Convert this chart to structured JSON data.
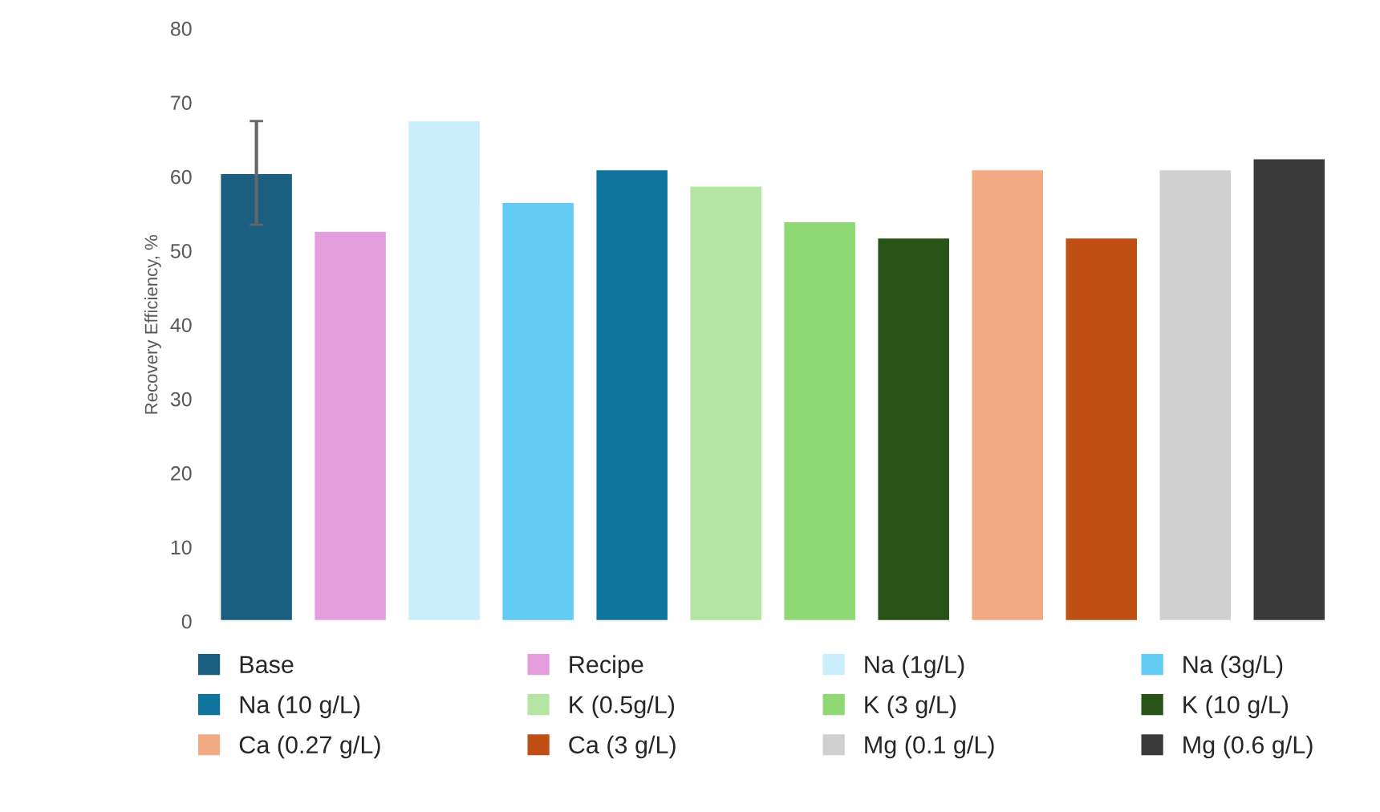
{
  "chart_data": {
    "type": "bar",
    "ylabel": "Recovery Efficiency, %",
    "stacked": true,
    "categories": [
      null,
      null,
      null,
      null,
      null,
      null,
      null,
      null,
      null,
      null,
      null,
      null
    ],
    "series": [
      {
        "name": "Base",
        "color": "#1a5e80",
        "values": [
          60.5,
          null,
          null,
          null,
          null,
          null,
          null,
          null,
          null,
          null,
          null,
          null
        ],
        "errors": [
          7,
          null,
          null,
          null,
          null,
          null,
          null,
          null,
          null,
          null,
          null,
          null
        ]
      },
      {
        "name": "Recipe",
        "color": "#e49edd",
        "values": [
          null,
          52.7,
          null,
          null,
          null,
          null,
          null,
          null,
          null,
          null,
          null,
          null
        ]
      },
      {
        "name": "Na (1g/L)",
        "color": "#caeefb",
        "values": [
          null,
          null,
          67.6,
          null,
          null,
          null,
          null,
          null,
          null,
          null,
          null,
          null
        ]
      },
      {
        "name": "Na (3g/L)",
        "color": "#61cbf4",
        "values": [
          null,
          null,
          null,
          56.6,
          null,
          null,
          null,
          null,
          null,
          null,
          null,
          null
        ]
      },
      {
        "name": "Na (10 g/L)",
        "color": "#0f759e",
        "values": [
          null,
          null,
          null,
          null,
          61.0,
          null,
          null,
          null,
          null,
          null,
          null,
          null
        ]
      },
      {
        "name": "K (0.5g/L)",
        "color": "#b4e5a2",
        "values": [
          null,
          null,
          null,
          null,
          null,
          58.8,
          null,
          null,
          null,
          null,
          null,
          null
        ]
      },
      {
        "name": "K (3 g/L)",
        "color": "#8ed973",
        "values": [
          null,
          null,
          null,
          null,
          null,
          null,
          54.0,
          null,
          null,
          null,
          null,
          null
        ]
      },
      {
        "name": "K (10 g/L)",
        "color": "#275317",
        "values": [
          null,
          null,
          null,
          null,
          null,
          null,
          null,
          51.8,
          null,
          null,
          null,
          null
        ]
      },
      {
        "name": "Ca (0.27 g/L)",
        "color": "#f2aa84",
        "values": [
          null,
          null,
          null,
          null,
          null,
          null,
          null,
          null,
          61.0,
          null,
          null,
          null
        ]
      },
      {
        "name": "Ca (3 g/L)",
        "color": "#c04f15",
        "values": [
          null,
          null,
          null,
          null,
          null,
          null,
          null,
          null,
          null,
          51.8,
          null,
          null
        ]
      },
      {
        "name": "Mg (0.1 g/L)",
        "color": "#d0d0d0",
        "values": [
          null,
          null,
          null,
          null,
          null,
          null,
          null,
          null,
          null,
          null,
          61.0,
          null
        ]
      },
      {
        "name": "Mg (0.6 g/L)",
        "color": "#3a3a3a",
        "values": [
          null,
          null,
          null,
          null,
          null,
          null,
          null,
          null,
          null,
          null,
          null,
          62.5
        ]
      }
    ],
    "ylim": [
      0,
      80
    ],
    "yticks": [
      0,
      10,
      20,
      30,
      40,
      50,
      60,
      70,
      80
    ],
    "tick_labels": "y",
    "grid": false,
    "legend": "bottom"
  }
}
